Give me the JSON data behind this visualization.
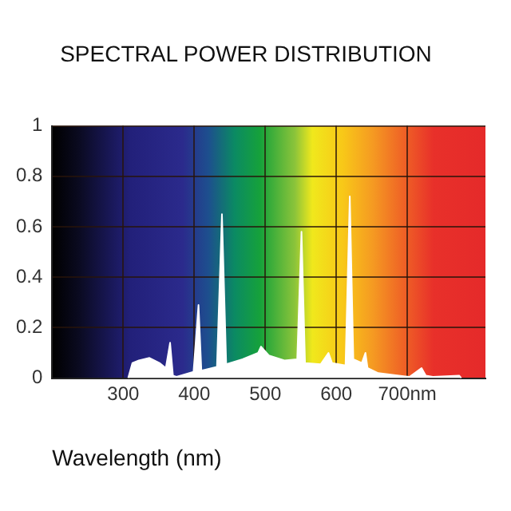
{
  "chart_data": {
    "type": "area",
    "title": "SPECTRAL POWER DISTRIBUTION",
    "xlabel": "Wavelength (nm)",
    "x": [
      307,
      313,
      322,
      337,
      351,
      360,
      366,
      370,
      375,
      399,
      406,
      410,
      432,
      439,
      445,
      468,
      490,
      494,
      505,
      527,
      545,
      551,
      556,
      578,
      589,
      594,
      613,
      619,
      624,
      636,
      641,
      644,
      659,
      688,
      703,
      720,
      726,
      736,
      773,
      776
    ],
    "series": [
      {
        "color": "#ffffff",
        "values": [
          0,
          0.06,
          0.07,
          0.08,
          0.06,
          0.04,
          0.14,
          0.01,
          0.005,
          0.025,
          0.29,
          0.03,
          0.045,
          0.65,
          0.055,
          0.075,
          0.1,
          0.125,
          0.09,
          0.07,
          0.075,
          0.58,
          0.06,
          0.055,
          0.1,
          0.06,
          0.05,
          0.72,
          0.075,
          0.06,
          0.1,
          0.04,
          0.02,
          0.01,
          0.005,
          0.04,
          0.01,
          0.005,
          0.01,
          0
        ]
      }
    ],
    "xlim": [
      200,
      810
    ],
    "xticks": [
      300,
      400,
      500,
      600,
      {
        "value": 700,
        "label": "700nm"
      }
    ],
    "ylim": [
      0,
      1
    ],
    "yticks": [
      0,
      0.2,
      0.4,
      0.6,
      0.8,
      1
    ],
    "grid": true,
    "legend": false
  }
}
